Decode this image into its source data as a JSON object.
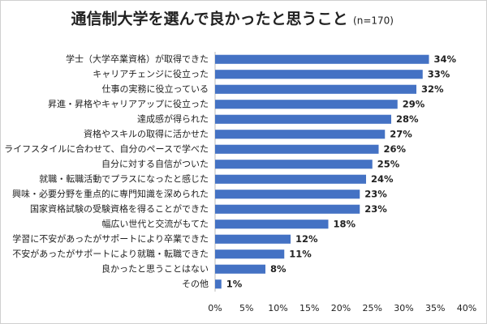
{
  "chart_data": {
    "type": "hbar",
    "title": "通信制大学を選んで良かったと思うこと",
    "subtitle": "(n=170)",
    "categories": [
      "学士（大学卒業資格）が取得できた",
      "キャリアチェンジに役立った",
      "仕事の実務に役立っている",
      "昇進・昇格やキャリアアップに役立った",
      "達成感が得られた",
      "資格やスキルの取得に活かせた",
      "ライフスタイルに合わせて、自分のペースで学べた",
      "自分に対する自信がついた",
      "就職・転職活動でプラスになったと感じた",
      "興味・必要分野を重点的に専門知識を深められた",
      "国家資格試験の受験資格を得ることができた",
      "幅広い世代と交流がもてた",
      "学習に不安があったがサポートにより卒業できた",
      "不安があったがサポートにより就職・転職できた",
      "良かったと思うことはない",
      "その他"
    ],
    "values": [
      34,
      33,
      32,
      29,
      28,
      27,
      26,
      25,
      24,
      23,
      23,
      18,
      12,
      11,
      8,
      1
    ],
    "value_labels": [
      "34%",
      "33%",
      "32%",
      "29%",
      "28%",
      "27%",
      "26%",
      "25%",
      "24%",
      "23%",
      "23%",
      "18%",
      "12%",
      "11%",
      "8%",
      "1%"
    ],
    "color": "#4472c4",
    "xlim": [
      0,
      40
    ],
    "xticks": [
      {
        "value": 0,
        "label": "0%"
      },
      {
        "value": 5,
        "label": "5%"
      },
      {
        "value": 10,
        "label": "10%"
      },
      {
        "value": 15,
        "label": "15%"
      },
      {
        "value": 20,
        "label": "20%"
      },
      {
        "value": 25,
        "label": "25%"
      },
      {
        "value": 30,
        "label": "30%"
      },
      {
        "value": 35,
        "label": "35%"
      },
      {
        "value": 40,
        "label": "40%"
      }
    ]
  }
}
